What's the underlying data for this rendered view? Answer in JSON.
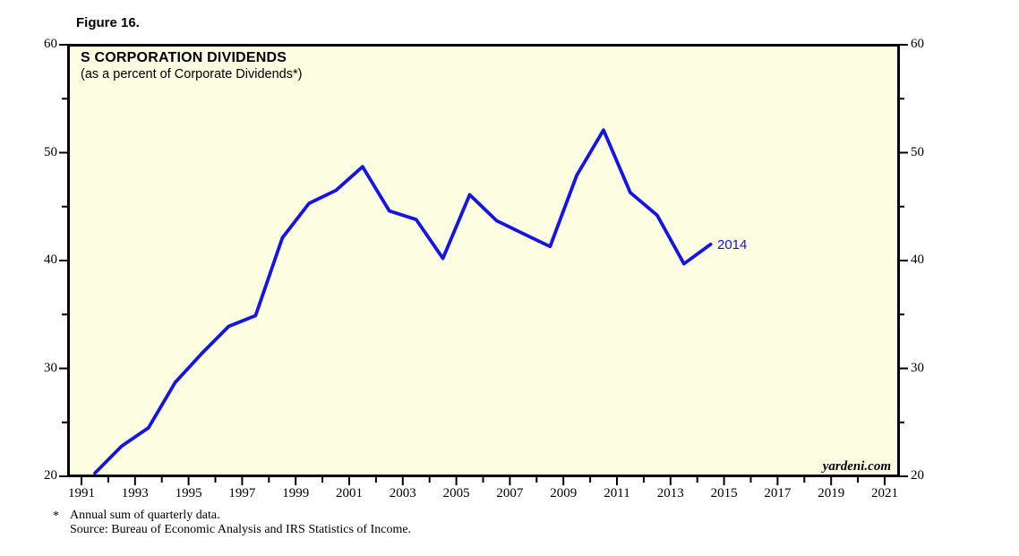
{
  "figure_label": "Figure 16.",
  "chart": {
    "title": "S CORPORATION DIVIDENDS",
    "subtitle": "(as a percent of Corporate Dividends*)",
    "watermark": "yardeni.com",
    "end_label": "2014",
    "plot_bg": "#FDFDE2",
    "line_color": "#1414E8",
    "border_color": "#000000",
    "label_color": "#000000"
  },
  "footnote": {
    "marker": "*",
    "line1": "Annual sum of quarterly data.",
    "line2": "Source: Bureau of Economic Analysis and IRS Statistics of Income."
  },
  "chart_data": {
    "type": "line",
    "title": "S CORPORATION DIVIDENDS (as a percent of Corporate Dividends*)",
    "x": [
      1991,
      1992,
      1993,
      1994,
      1995,
      1996,
      1997,
      1998,
      1999,
      2000,
      2001,
      2002,
      2003,
      2004,
      2005,
      2006,
      2007,
      2008,
      2009,
      2010,
      2011,
      2012,
      2013,
      2014
    ],
    "values": [
      20.3,
      22.8,
      24.5,
      28.7,
      31.4,
      33.9,
      34.9,
      42.1,
      45.3,
      46.5,
      48.7,
      44.6,
      43.8,
      40.2,
      46.1,
      43.7,
      42.5,
      41.3,
      47.9,
      52.1,
      46.3,
      44.2,
      39.7,
      41.5
    ],
    "series_end_label": "2014",
    "xlim": [
      1990.5,
      2021.6
    ],
    "ylim": [
      20,
      60
    ],
    "y_ticks_major": [
      20,
      30,
      40,
      50,
      60
    ],
    "y_ticks_minor": [
      25,
      35,
      45,
      55
    ],
    "x_tick_labels": [
      1991,
      1993,
      1995,
      1997,
      1999,
      2001,
      2003,
      2005,
      2007,
      2009,
      2011,
      2013,
      2015,
      2017,
      2019,
      2021
    ],
    "x_ticks_minor": [
      1992,
      1994,
      1996,
      1998,
      2000,
      2002,
      2004,
      2006,
      2008,
      2010,
      2012,
      2014,
      2016,
      2018,
      2020
    ],
    "points_plotted_at": "mid-year",
    "grid": false,
    "legend_position": "none",
    "y_axis_sides": [
      "left",
      "right"
    ]
  }
}
